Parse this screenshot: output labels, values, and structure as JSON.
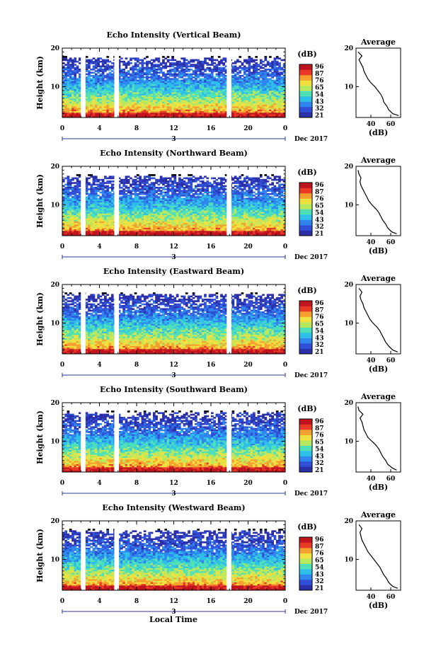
{
  "colorbar": {
    "unit": "(dB)",
    "ticks": [
      "96",
      "87",
      "76",
      "65",
      "54",
      "43",
      "32",
      "21"
    ],
    "colors": [
      "#2b2fa8",
      "#3050d8",
      "#2f86ef",
      "#2fc0ea",
      "#4fe0b8",
      "#b8e860",
      "#f0e040",
      "#f6a030",
      "#e83a26",
      "#c0141e"
    ]
  },
  "gap_color": "#ffffff",
  "xaxis": {
    "ticks": [
      "0",
      "4",
      "8",
      "12",
      "16",
      "20",
      "0"
    ],
    "day_label": "3",
    "month_label": "Dec 2017",
    "xlabel": "Local Time"
  },
  "chart_data": [
    {
      "type": "heatmap",
      "title": "Echo Intensity (Vertical Beam)",
      "ylabel": "Height (km)",
      "yticks": [
        "20",
        "10"
      ],
      "x_range_hours": [
        0,
        24
      ],
      "y_range_km": [
        2,
        20
      ],
      "data_gaps_hours": [
        [
          2.0,
          2.5
        ],
        [
          5.6,
          6.1
        ],
        [
          17.7,
          18.2
        ]
      ],
      "top_of_data_km": 17.5,
      "profile": {
        "title": "Average",
        "xlabel": "(dB)",
        "xticks": [
          "40",
          "60"
        ],
        "x_range": [
          25,
          70
        ],
        "height_km": [
          2.5,
          3,
          4,
          5,
          6,
          7,
          8,
          9,
          10,
          11,
          12,
          13,
          14,
          15,
          16,
          17,
          18,
          19
        ],
        "intensity_db": [
          68,
          62,
          58,
          56,
          53,
          52,
          50,
          47,
          44,
          40,
          37,
          35,
          33,
          32,
          30,
          28,
          31,
          27
        ]
      }
    },
    {
      "type": "heatmap",
      "title": "Echo Intensity (Northward Beam)",
      "ylabel": "Height (km)",
      "yticks": [
        "20",
        "10"
      ],
      "x_range_hours": [
        0,
        24
      ],
      "y_range_km": [
        2,
        20
      ],
      "data_gaps_hours": [
        [
          2.0,
          2.5
        ],
        [
          5.6,
          6.1
        ],
        [
          17.7,
          18.2
        ]
      ],
      "top_of_data_km": 17.5,
      "profile": {
        "title": "Average",
        "xlabel": "(dB)",
        "xticks": [
          "40",
          "60"
        ],
        "x_range": [
          25,
          70
        ],
        "height_km": [
          2.5,
          3,
          4,
          5,
          6,
          7,
          8,
          9,
          10,
          11,
          12,
          13,
          14,
          15,
          16,
          17,
          18,
          19
        ],
        "intensity_db": [
          66,
          61,
          57,
          55,
          52,
          50,
          48,
          45,
          41,
          38,
          36,
          34,
          32,
          30,
          29,
          30,
          28,
          27
        ]
      }
    },
    {
      "type": "heatmap",
      "title": "Echo Intensity (Eastward Beam)",
      "ylabel": "Height (km)",
      "yticks": [
        "20",
        "10"
      ],
      "x_range_hours": [
        0,
        24
      ],
      "y_range_km": [
        2,
        20
      ],
      "data_gaps_hours": [
        [
          2.0,
          2.5
        ],
        [
          5.6,
          6.1
        ],
        [
          17.7,
          18.2
        ]
      ],
      "top_of_data_km": 17.5,
      "profile": {
        "title": "Average",
        "xlabel": "(dB)",
        "xticks": [
          "40",
          "60"
        ],
        "x_range": [
          25,
          70
        ],
        "height_km": [
          2.5,
          3,
          4,
          5,
          6,
          7,
          8,
          9,
          10,
          11,
          12,
          13,
          14,
          15,
          16,
          17,
          18,
          19
        ],
        "intensity_db": [
          67,
          62,
          58,
          55,
          53,
          51,
          49,
          46,
          42,
          39,
          37,
          35,
          33,
          32,
          30,
          29,
          31,
          28
        ]
      }
    },
    {
      "type": "heatmap",
      "title": "Echo Intensity (Southward Beam)",
      "ylabel": "Height (km)",
      "yticks": [
        "20",
        "10"
      ],
      "x_range_hours": [
        0,
        24
      ],
      "y_range_km": [
        2,
        20
      ],
      "data_gaps_hours": [
        [
          2.0,
          2.5
        ],
        [
          5.6,
          6.1
        ],
        [
          17.7,
          18.2
        ]
      ],
      "top_of_data_km": 17.5,
      "profile": {
        "title": "Average",
        "xlabel": "(dB)",
        "xticks": [
          "40",
          "60"
        ],
        "x_range": [
          25,
          70
        ],
        "height_km": [
          2.5,
          3,
          4,
          5,
          6,
          7,
          8,
          9,
          10,
          11,
          12,
          13,
          14,
          15,
          16,
          17,
          18,
          19
        ],
        "intensity_db": [
          66,
          62,
          57,
          55,
          52,
          50,
          48,
          45,
          41,
          37,
          35,
          33,
          32,
          31,
          29,
          32,
          28,
          27
        ]
      }
    },
    {
      "type": "heatmap",
      "title": "Echo Intensity (Westward Beam)",
      "ylabel": "Height (km)",
      "yticks": [
        "20",
        "10"
      ],
      "x_range_hours": [
        0,
        24
      ],
      "y_range_km": [
        2,
        20
      ],
      "data_gaps_hours": [
        [
          2.0,
          2.5
        ],
        [
          5.6,
          6.1
        ],
        [
          17.7,
          18.2
        ]
      ],
      "top_of_data_km": 17.5,
      "profile": {
        "title": "Average",
        "xlabel": "(dB)",
        "xticks": [
          "40",
          "60"
        ],
        "x_range": [
          25,
          70
        ],
        "height_km": [
          2.5,
          3,
          4,
          5,
          6,
          7,
          8,
          9,
          10,
          11,
          12,
          13,
          14,
          15,
          16,
          17,
          18,
          19
        ],
        "intensity_db": [
          67,
          62,
          58,
          56,
          53,
          51,
          49,
          46,
          43,
          40,
          37,
          35,
          33,
          31,
          30,
          29,
          31,
          28
        ]
      }
    }
  ]
}
